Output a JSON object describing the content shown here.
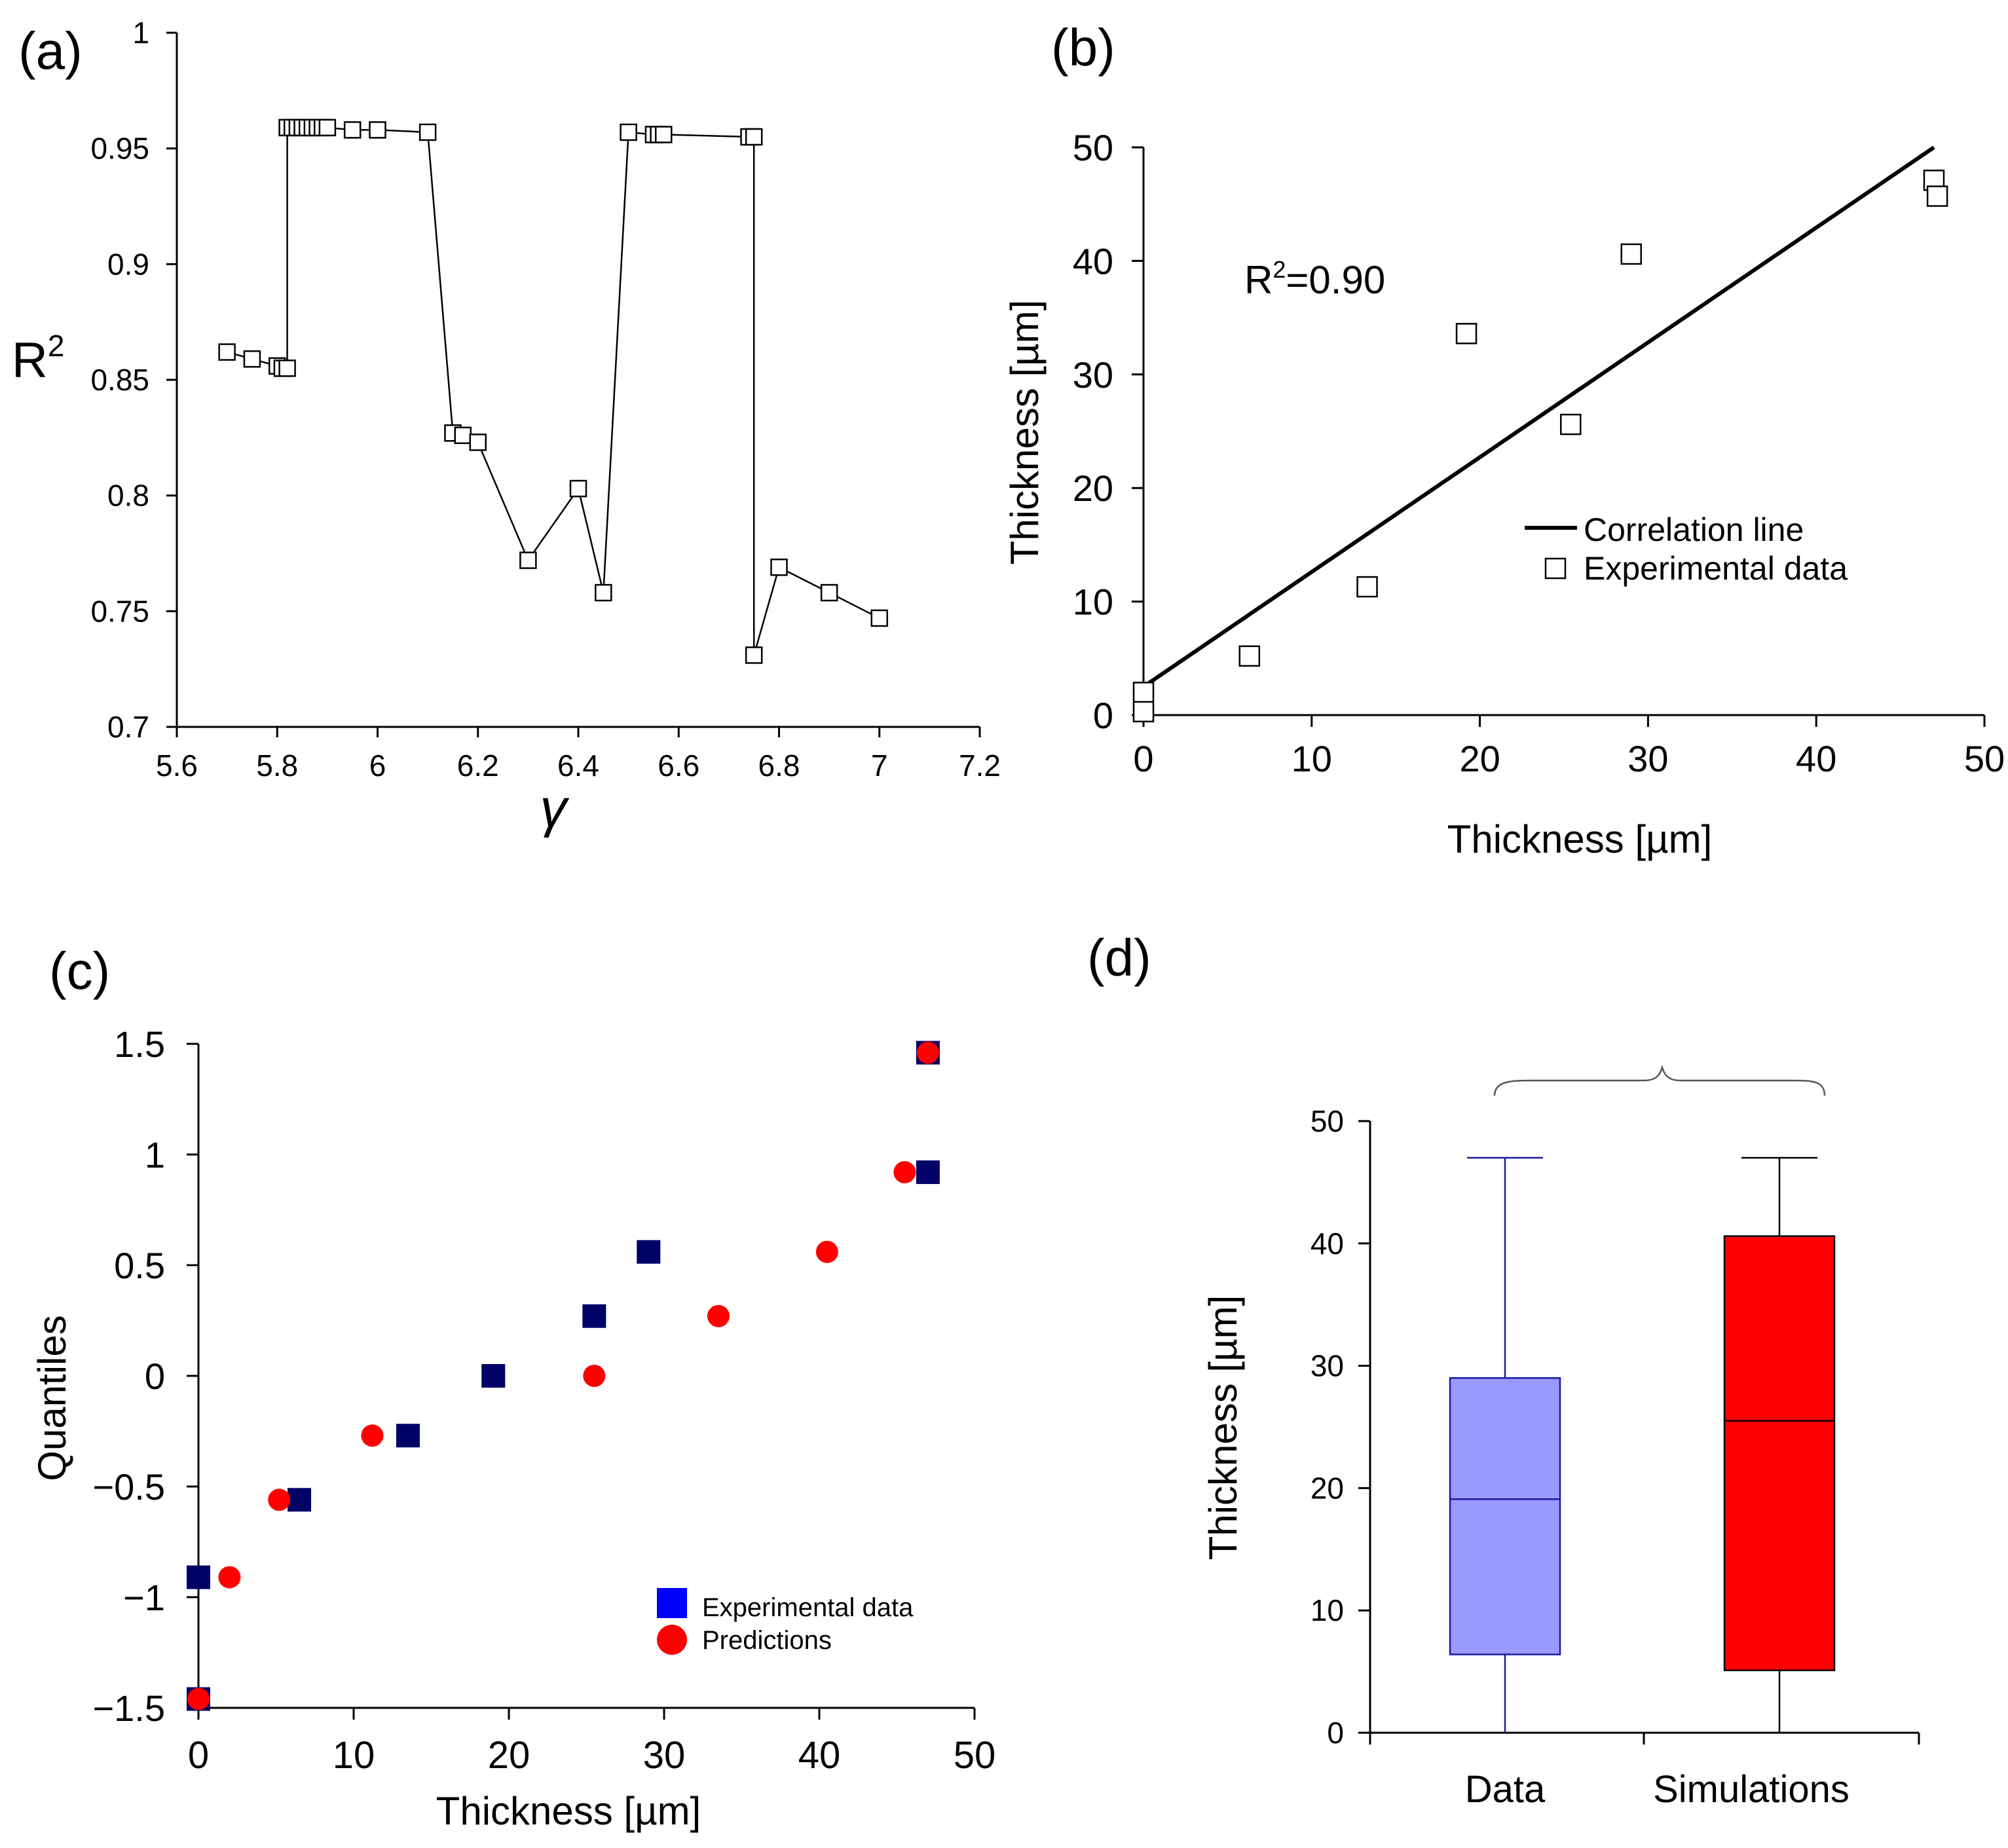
{
  "chart_data": [
    {
      "panel": "(a)",
      "type": "line",
      "title": "",
      "xlabel": "γ",
      "ylabel": "R",
      "ylabel_sup": "2",
      "xlim": [
        5.6,
        7.2
      ],
      "ylim": [
        0.7,
        1.0
      ],
      "xticks": [
        5.6,
        5.8,
        6.0,
        6.2,
        6.4,
        6.6,
        6.8,
        7.0,
        7.2
      ],
      "xtick_labels": [
        "5.6",
        "5.8",
        "6",
        "6.2",
        "6.4",
        "6.6",
        "6.8",
        "7",
        "7.2"
      ],
      "yticks": [
        0.7,
        0.75,
        0.8,
        0.85,
        0.9,
        0.95,
        1.0
      ],
      "ytick_labels": [
        "0.7",
        "0.75",
        "0.8",
        "0.85",
        "0.9",
        "0.95",
        "1"
      ],
      "marker": "open-square",
      "grid": false,
      "x": [
        5.7,
        5.75,
        5.8,
        5.81,
        5.82,
        5.82,
        5.83,
        5.84,
        5.85,
        5.86,
        5.87,
        5.88,
        5.89,
        5.9,
        5.95,
        6.0,
        6.1,
        6.15,
        6.17,
        6.2,
        6.3,
        6.4,
        6.45,
        6.5,
        6.55,
        6.56,
        6.57,
        6.74,
        6.75,
        6.75,
        6.8,
        6.9,
        7.0
      ],
      "y": [
        0.862,
        0.859,
        0.856,
        0.855,
        0.855,
        0.959,
        0.959,
        0.959,
        0.959,
        0.959,
        0.959,
        0.959,
        0.959,
        0.959,
        0.958,
        0.958,
        0.957,
        0.827,
        0.826,
        0.823,
        0.772,
        0.803,
        0.758,
        0.957,
        0.956,
        0.956,
        0.956,
        0.955,
        0.955,
        0.731,
        0.769,
        0.758,
        0.747
      ]
    },
    {
      "panel": "(b)",
      "type": "scatter",
      "title": "",
      "xlabel": "Thickness [µm]",
      "ylabel": "Thickness [µm]",
      "xlim": [
        0,
        50
      ],
      "ylim": [
        0,
        50
      ],
      "xticks": [
        0,
        10,
        20,
        30,
        40,
        50
      ],
      "yticks": [
        0,
        10,
        20,
        30,
        40,
        50
      ],
      "grid": false,
      "annotation": {
        "prefix": "R",
        "sup": "2",
        "text": "=0.90"
      },
      "legend": {
        "position": "lower-right",
        "entries": [
          "Correlation line",
          "Experimental data"
        ]
      },
      "series": [
        {
          "name": "Correlation line",
          "kind": "line",
          "x": [
            0,
            47
          ],
          "y": [
            2.5,
            50
          ]
        },
        {
          "name": "Experimental data",
          "kind": "open-square",
          "x": [
            0,
            0,
            6.3,
            13.3,
            19.2,
            25.4,
            29.0,
            47.0,
            47.2
          ],
          "y": [
            2.0,
            0.3,
            5.2,
            11.3,
            33.6,
            25.6,
            40.6,
            47.1,
            45.7
          ]
        }
      ]
    },
    {
      "panel": "(c)",
      "type": "scatter",
      "title": "",
      "xlabel": "Thickness [µm]",
      "ylabel": "Quantiles",
      "xlim": [
        0,
        50
      ],
      "ylim": [
        -1.5,
        1.5
      ],
      "xticks": [
        0,
        10,
        20,
        30,
        40,
        50
      ],
      "yticks": [
        -1.5,
        -1,
        -0.5,
        0,
        0.5,
        1,
        1.5
      ],
      "ytick_labels": [
        "−1.5",
        "−1",
        "−0.5",
        "0",
        "0.5",
        "1",
        "1.5"
      ],
      "grid": false,
      "legend": {
        "position": "lower-right",
        "entries": [
          "Experimental data",
          "Predictions"
        ]
      },
      "series": [
        {
          "name": "Experimental data",
          "kind": "filled-square",
          "x": [
            0,
            0,
            6.5,
            13.5,
            19.0,
            25.5,
            29.0,
            47.0,
            47.0
          ],
          "y": [
            -1.46,
            -0.91,
            -0.56,
            -0.27,
            0.0,
            0.27,
            0.56,
            0.92,
            1.46
          ]
        },
        {
          "name": "Predictions",
          "kind": "filled-circle",
          "x": [
            0,
            2.0,
            5.2,
            11.2,
            25.5,
            33.5,
            40.5,
            45.5,
            47.0
          ],
          "y": [
            -1.46,
            -0.91,
            -0.56,
            -0.27,
            0.0,
            0.27,
            0.56,
            0.92,
            1.46
          ]
        }
      ]
    },
    {
      "panel": "(d)",
      "type": "box",
      "title": "",
      "xlabel": "",
      "ylabel": "Thickness [µm]",
      "ylim": [
        0,
        50
      ],
      "yticks": [
        0,
        10,
        20,
        30,
        40,
        50
      ],
      "grid": false,
      "categories": [
        "Data",
        "Simulations"
      ],
      "boxes": [
        {
          "name": "Data",
          "min": 0,
          "q1": 6.4,
          "median": 19.1,
          "q3": 29.0,
          "max": 47.0
        },
        {
          "name": "Simulations",
          "min": 0,
          "q1": 5.1,
          "median": 25.5,
          "q3": 40.6,
          "max": 47.0
        }
      ]
    }
  ],
  "panels": {
    "a": {
      "label": "(a)"
    },
    "b": {
      "label": "(b)"
    },
    "c": {
      "label": "(c)"
    },
    "d": {
      "label": "(d)"
    }
  },
  "colors": {
    "axis": "#000000",
    "exp_square_c": "#000066",
    "exp_square_legend": "#0000ff",
    "prediction": "#ff0000",
    "box_data_fill": "#9999ff",
    "box_data_stroke": "#1a1aa6",
    "box_sim_fill": "#ff0000",
    "box_sim_stroke": "#000000"
  }
}
